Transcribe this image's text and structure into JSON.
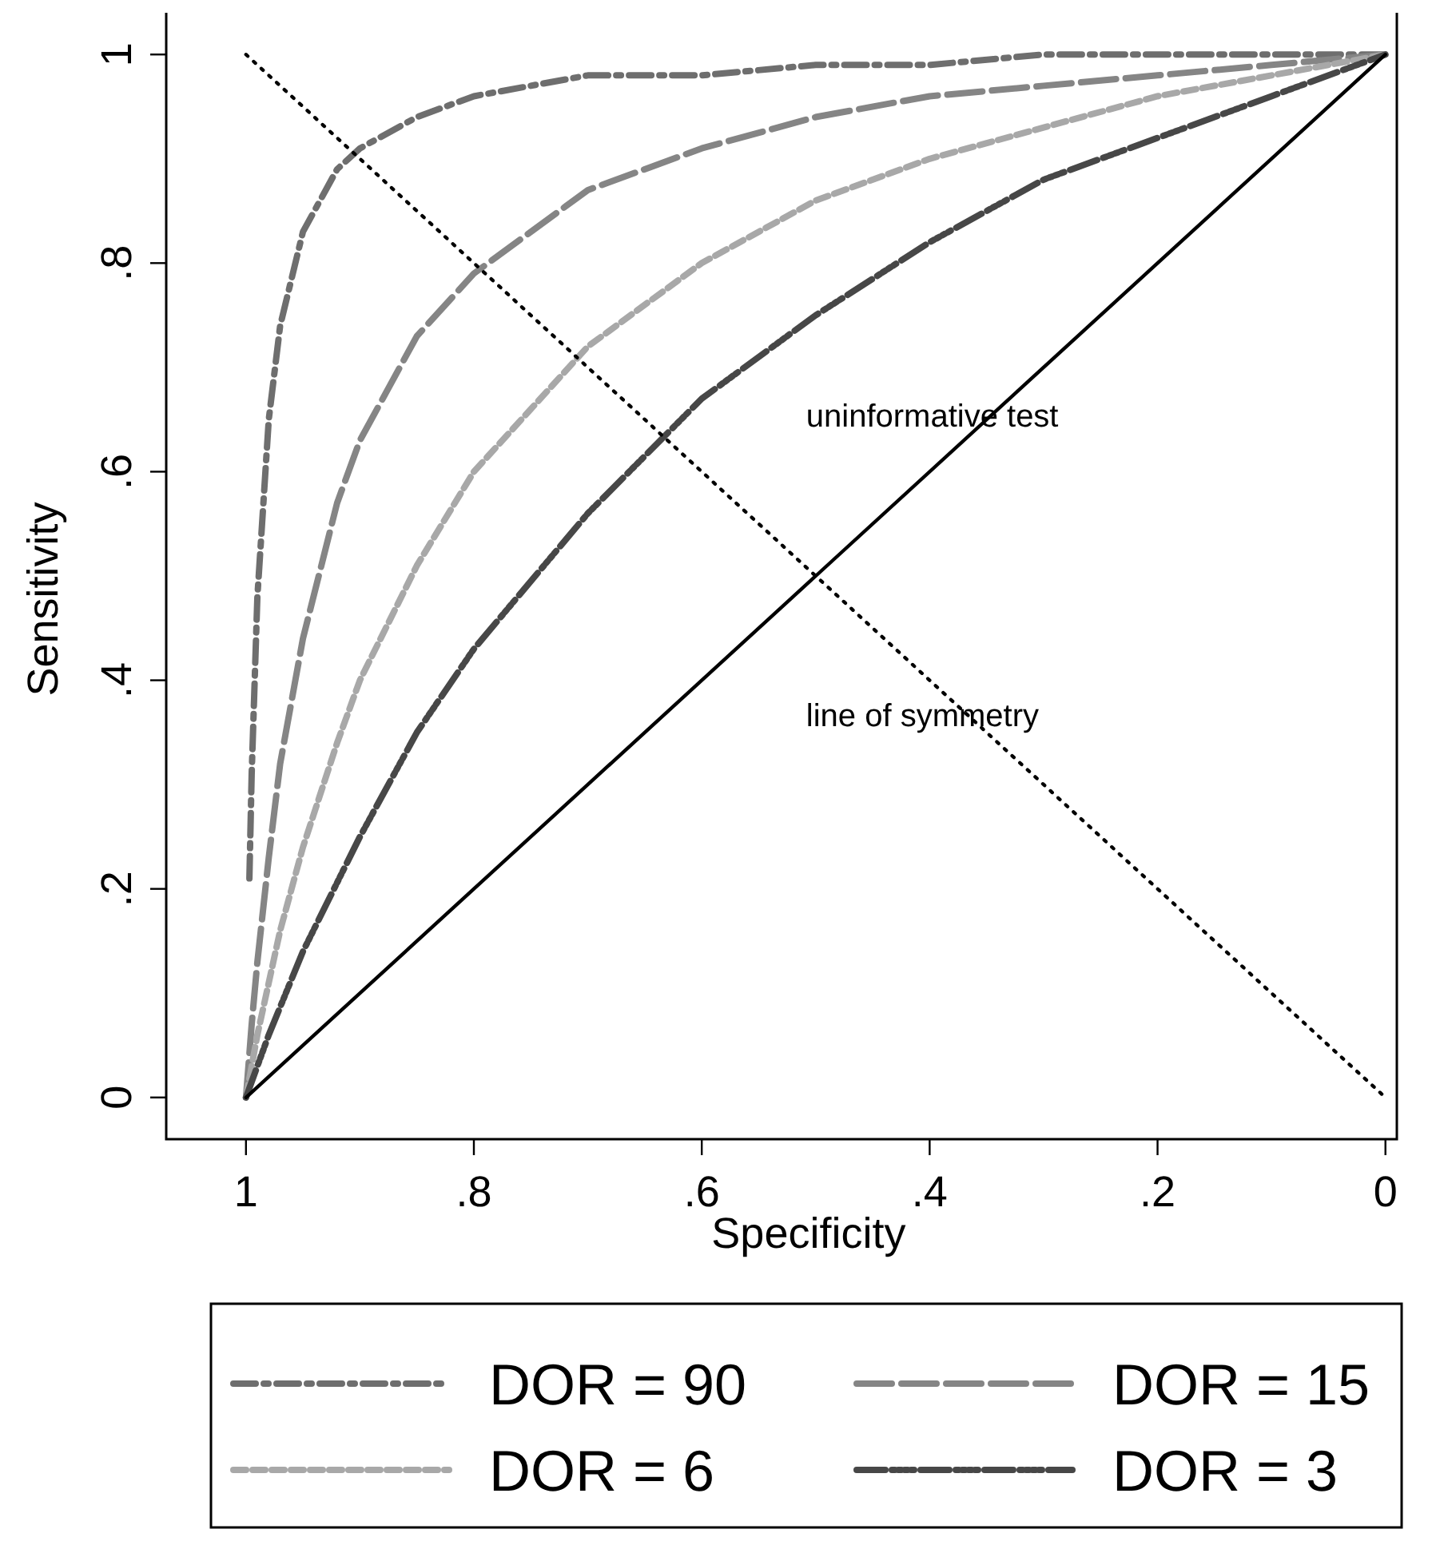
{
  "chart_data": {
    "type": "line",
    "xlabel": "Specificity",
    "ylabel": "Sensitivity",
    "xlim": [
      1.07,
      -0.01
    ],
    "ylim": [
      -0.04,
      1.04
    ],
    "xticks": [
      {
        "value": 1,
        "label": "1"
      },
      {
        "value": 0.8,
        "label": ".8"
      },
      {
        "value": 0.6,
        "label": ".6"
      },
      {
        "value": 0.4,
        "label": ".4"
      },
      {
        "value": 0.2,
        "label": ".2"
      },
      {
        "value": 0,
        "label": "0"
      }
    ],
    "yticks": [
      {
        "value": 0,
        "label": "0"
      },
      {
        "value": 0.2,
        "label": ".2"
      },
      {
        "value": 0.4,
        "label": ".4"
      },
      {
        "value": 0.6,
        "label": ".6"
      },
      {
        "value": 0.8,
        "label": ".8"
      },
      {
        "value": 1,
        "label": "1"
      }
    ],
    "grid": false,
    "legend": "bottom",
    "marker": "none",
    "series": [
      {
        "name": "DOR = 90",
        "color": "#6e6e6e",
        "line_style": "dashed",
        "x": [
          0.997,
          0.995,
          0.99,
          0.98,
          0.97,
          0.95,
          0.92,
          0.9,
          0.85,
          0.8,
          0.7,
          0.6,
          0.5,
          0.4,
          0.3,
          0.2,
          0.1,
          0
        ],
        "values": [
          0.21,
          0.31,
          0.48,
          0.65,
          0.74,
          0.83,
          0.89,
          0.91,
          0.94,
          0.96,
          0.98,
          0.98,
          0.99,
          0.99,
          1.0,
          1.0,
          1.0,
          1
        ]
      },
      {
        "name": "DOR = 15",
        "color": "#858585",
        "line_style": "dashed",
        "x": [
          1,
          0.995,
          0.99,
          0.98,
          0.97,
          0.95,
          0.92,
          0.9,
          0.85,
          0.8,
          0.7,
          0.6,
          0.5,
          0.4,
          0.3,
          0.2,
          0.1,
          0
        ],
        "values": [
          0,
          0.07,
          0.13,
          0.23,
          0.32,
          0.44,
          0.57,
          0.63,
          0.73,
          0.79,
          0.87,
          0.91,
          0.94,
          0.96,
          0.97,
          0.98,
          0.99,
          1
        ]
      },
      {
        "name": "DOR = 6",
        "color": "#a8a8a8",
        "line_style": "dashed",
        "x": [
          1,
          0.99,
          0.98,
          0.97,
          0.95,
          0.92,
          0.9,
          0.85,
          0.8,
          0.7,
          0.6,
          0.5,
          0.4,
          0.3,
          0.2,
          0.1,
          0
        ],
        "values": [
          0,
          0.06,
          0.11,
          0.16,
          0.24,
          0.34,
          0.4,
          0.51,
          0.6,
          0.72,
          0.8,
          0.86,
          0.9,
          0.93,
          0.96,
          0.98,
          1
        ]
      },
      {
        "name": "DOR = 3",
        "color": "#474747",
        "line_style": "dashed",
        "x": [
          1,
          0.98,
          0.95,
          0.9,
          0.85,
          0.8,
          0.7,
          0.6,
          0.5,
          0.4,
          0.3,
          0.2,
          0.1,
          0
        ],
        "values": [
          0,
          0.06,
          0.14,
          0.25,
          0.35,
          0.43,
          0.56,
          0.67,
          0.75,
          0.82,
          0.88,
          0.92,
          0.96,
          1
        ]
      },
      {
        "color": "#000000",
        "line_style": "solid",
        "x": [
          1,
          0
        ],
        "values": [
          0,
          1
        ]
      },
      {
        "color": "#000000",
        "line_style": "dotted",
        "x": [
          1,
          0
        ],
        "values": [
          1,
          0
        ]
      }
    ],
    "annotations": [
      "uninformative test",
      "line of symmetry"
    ]
  }
}
